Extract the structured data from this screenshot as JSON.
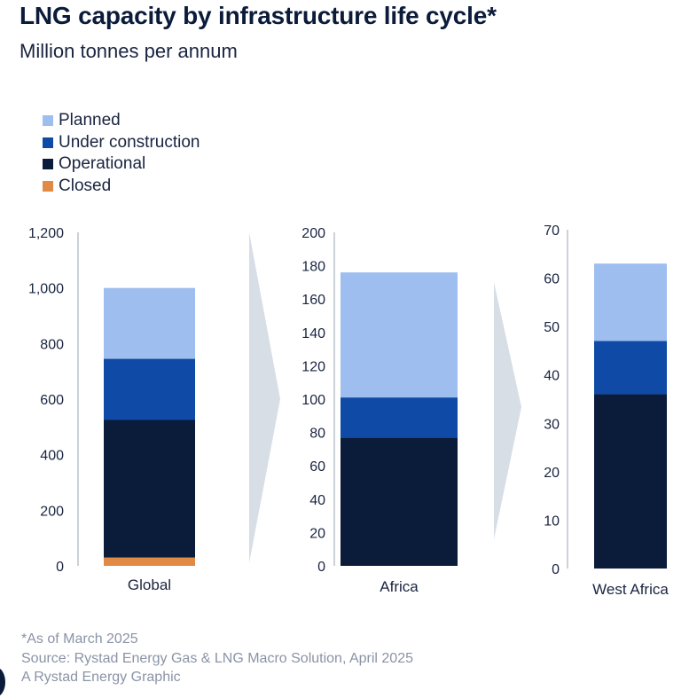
{
  "title": "LNG capacity by infrastructure life cycle*",
  "subtitle": "Million tonnes per annum",
  "legend": [
    {
      "label": "Planned",
      "color": "#9fbef0"
    },
    {
      "label": "Under construction",
      "color": "#0e4aa6"
    },
    {
      "label": "Operational",
      "color": "#0b1b3a"
    },
    {
      "label": "Closed",
      "color": "#e08a46"
    }
  ],
  "chart_data": [
    {
      "type": "bar",
      "stacked": true,
      "categories": [
        "Global"
      ],
      "ylim": [
        0,
        1200
      ],
      "yticks": [
        0,
        200,
        400,
        600,
        800,
        1000,
        1200
      ],
      "tick_labels": [
        "0",
        "200",
        "400",
        "600",
        "800",
        "1,000",
        "1,200"
      ],
      "series": [
        {
          "name": "Closed",
          "values": [
            30
          ]
        },
        {
          "name": "Operational",
          "values": [
            495
          ]
        },
        {
          "name": "Under construction",
          "values": [
            220
          ]
        },
        {
          "name": "Planned",
          "values": [
            255
          ]
        }
      ]
    },
    {
      "type": "bar",
      "stacked": true,
      "categories": [
        "Africa"
      ],
      "ylim": [
        0,
        200
      ],
      "yticks": [
        0,
        20,
        40,
        60,
        80,
        100,
        120,
        140,
        160,
        180,
        200
      ],
      "tick_labels": [
        "0",
        "20",
        "40",
        "60",
        "80",
        "100",
        "120",
        "140",
        "160",
        "180",
        "200"
      ],
      "series": [
        {
          "name": "Closed",
          "values": [
            0
          ]
        },
        {
          "name": "Operational",
          "values": [
            77
          ]
        },
        {
          "name": "Under construction",
          "values": [
            24
          ]
        },
        {
          "name": "Planned",
          "values": [
            75
          ]
        }
      ]
    },
    {
      "type": "bar",
      "stacked": true,
      "categories": [
        "West Africa"
      ],
      "ylim": [
        0,
        70
      ],
      "yticks": [
        0,
        10,
        20,
        30,
        40,
        50,
        60,
        70
      ],
      "tick_labels": [
        "0",
        "10",
        "20",
        "30",
        "40",
        "50",
        "60",
        "70"
      ],
      "series": [
        {
          "name": "Closed",
          "values": [
            0
          ]
        },
        {
          "name": "Operational",
          "values": [
            36
          ]
        },
        {
          "name": "Under construction",
          "values": [
            11
          ]
        },
        {
          "name": "Planned",
          "values": [
            16
          ]
        }
      ]
    }
  ],
  "footer": {
    "note": "*As of March 2025",
    "source": "Source: Rystad Energy Gas & LNG Macro Solution, April 2025",
    "credit": "A Rystad Energy Graphic"
  }
}
